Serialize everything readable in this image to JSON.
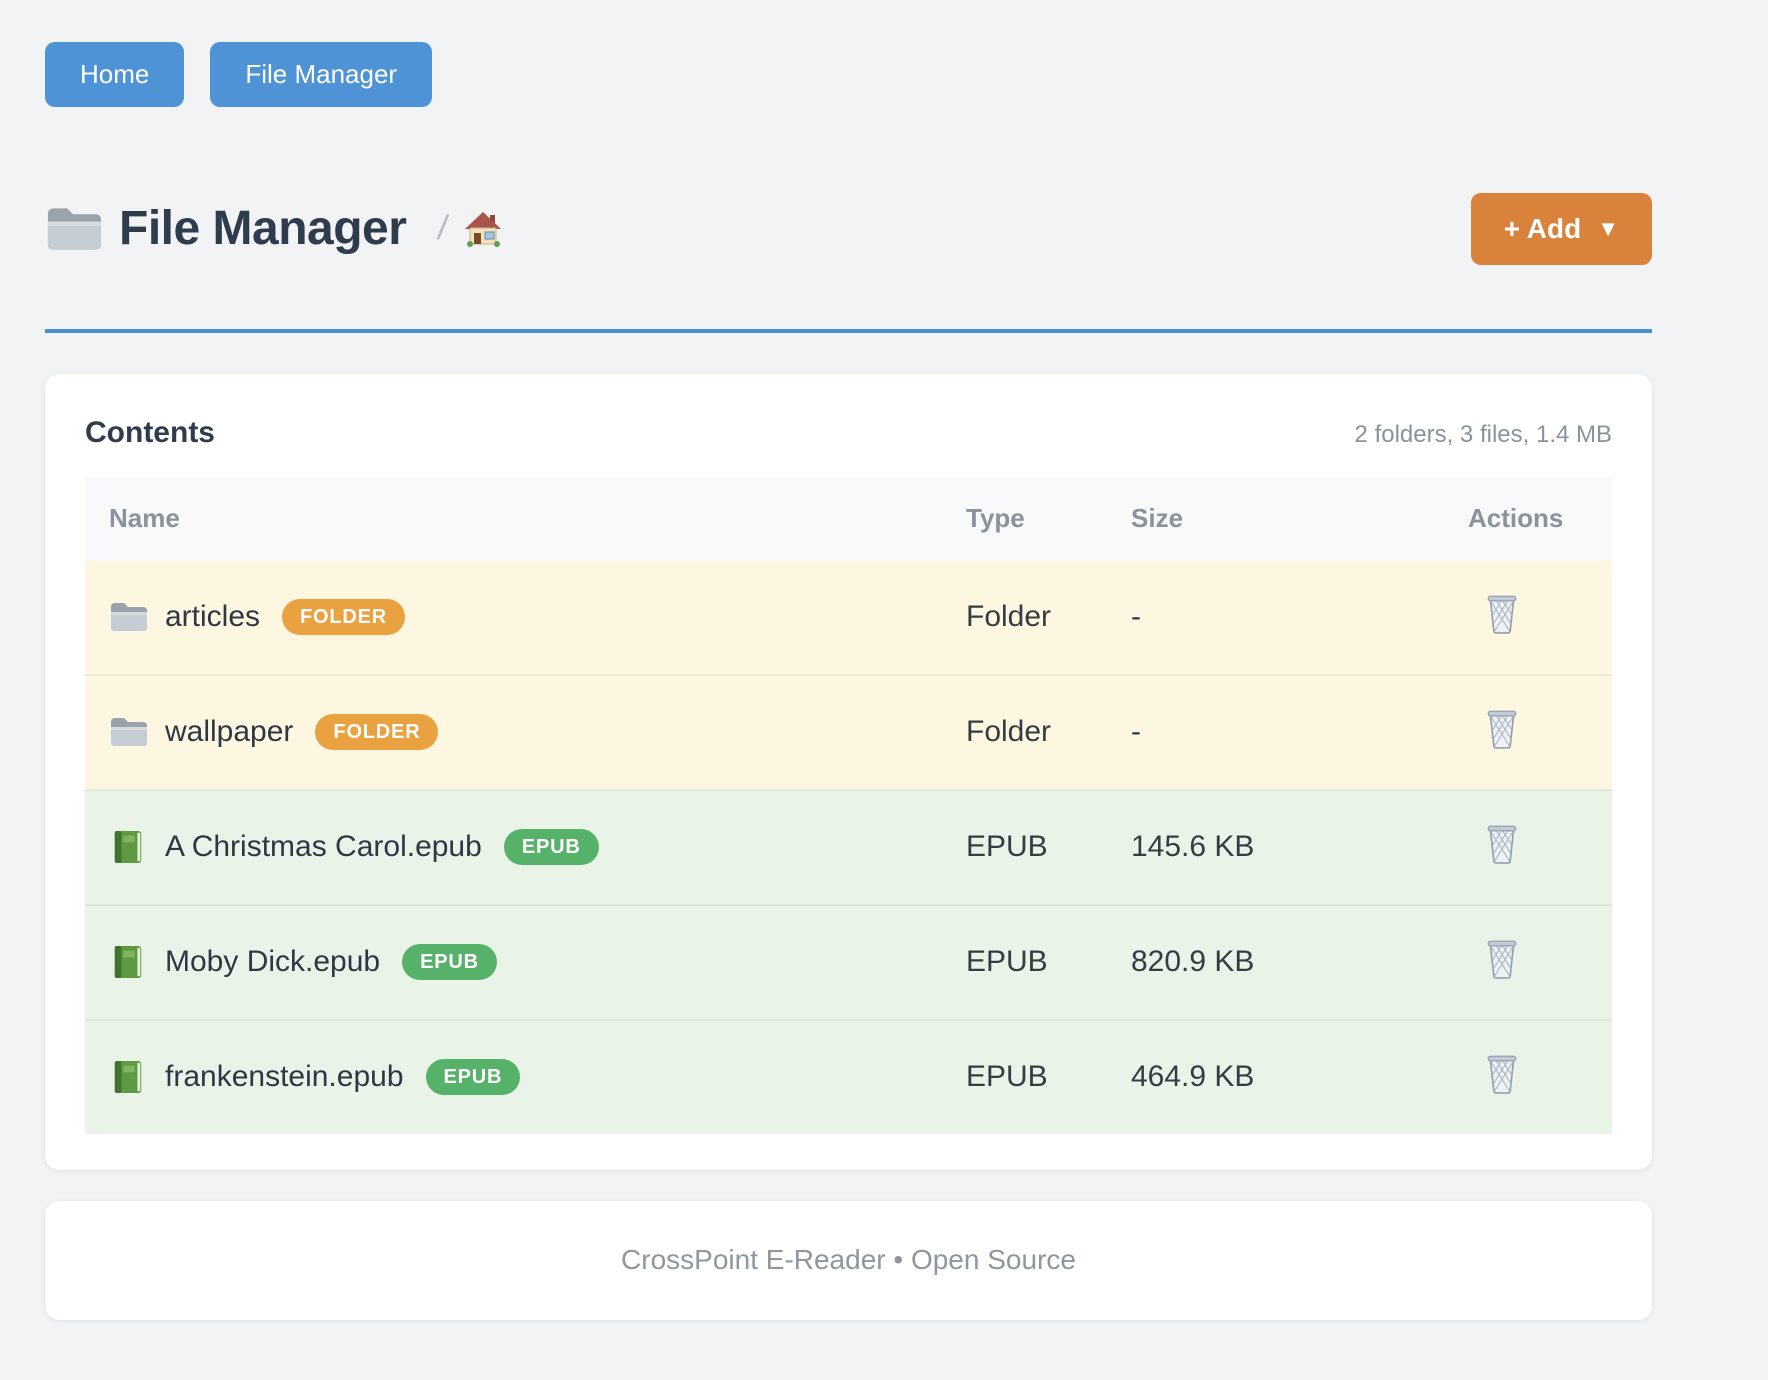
{
  "nav": {
    "home_label": "Home",
    "file_manager_label": "File Manager"
  },
  "header": {
    "icon": "folder-icon",
    "title": "File Manager",
    "breadcrumb_separator": "/",
    "breadcrumb_home_icon": "house-icon",
    "add_button_label": "+ Add",
    "add_button_caret": "▼"
  },
  "colors": {
    "nav_blue": "#4e93d6",
    "divider_blue": "#4a90d5",
    "add_orange": "#d9823c",
    "folder_badge": "#e9a23f",
    "epub_badge": "#57b269",
    "folder_row_bg": "#fdf6e1",
    "epub_row_bg": "#e9f3e8"
  },
  "contents_card": {
    "title": "Contents",
    "summary": "2 folders, 3 files, 1.4 MB",
    "table": {
      "headers": [
        "Name",
        "Type",
        "Size",
        "Actions"
      ],
      "rows": [
        {
          "icon": "folder-icon",
          "name": "articles",
          "badge": "FOLDER",
          "badge_color": "#e9a23f",
          "row_bg": "#fdf6e1",
          "type": "Folder",
          "size": "-",
          "action_icon": "trash-icon"
        },
        {
          "icon": "folder-icon",
          "name": "wallpaper",
          "badge": "FOLDER",
          "badge_color": "#e9a23f",
          "row_bg": "#fdf6e1",
          "type": "Folder",
          "size": "-",
          "action_icon": "trash-icon"
        },
        {
          "icon": "book-icon",
          "name": "A Christmas Carol.epub",
          "badge": "EPUB",
          "badge_color": "#57b269",
          "row_bg": "#e9f3e8",
          "type": "EPUB",
          "size": "145.6 KB",
          "action_icon": "trash-icon"
        },
        {
          "icon": "book-icon",
          "name": "Moby Dick.epub",
          "badge": "EPUB",
          "badge_color": "#57b269",
          "row_bg": "#e9f3e8",
          "type": "EPUB",
          "size": "820.9 KB",
          "action_icon": "trash-icon"
        },
        {
          "icon": "book-icon",
          "name": "frankenstein.epub",
          "badge": "EPUB",
          "badge_color": "#57b269",
          "row_bg": "#e9f3e8",
          "type": "EPUB",
          "size": "464.9 KB",
          "action_icon": "trash-icon"
        }
      ]
    }
  },
  "footer": {
    "text": "CrossPoint E-Reader • Open Source"
  }
}
